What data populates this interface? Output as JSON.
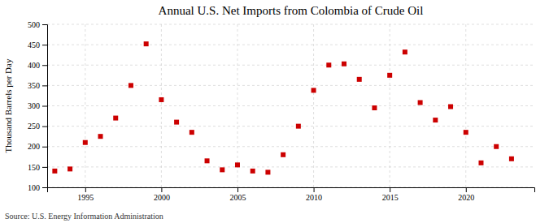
{
  "chart_data": {
    "type": "scatter",
    "title": "Annual U.S. Net Imports from Colombia of Crude Oil",
    "ylabel": "Thousand Barrels per Day",
    "annotation": "Source: U.S. Energy Information Administration",
    "x": [
      1993,
      1994,
      1995,
      1996,
      1997,
      1998,
      1999,
      2000,
      2001,
      2002,
      2003,
      2004,
      2005,
      2006,
      2007,
      2008,
      2009,
      2010,
      2011,
      2012,
      2013,
      2014,
      2015,
      2016,
      2017,
      2018,
      2019,
      2020,
      2021,
      2022,
      2023
    ],
    "values": [
      140,
      145,
      210,
      225,
      270,
      350,
      452,
      315,
      260,
      235,
      165,
      143,
      155,
      140,
      137,
      180,
      250,
      338,
      400,
      403,
      365,
      295,
      375,
      432,
      308,
      265,
      298,
      235,
      160,
      200,
      170
    ],
    "color": "#cc0000",
    "marker": "square",
    "xlim": [
      1992.5,
      2024.5
    ],
    "ylim": [
      100,
      500
    ],
    "xticks": [
      1995,
      2000,
      2005,
      2010,
      2015,
      2020
    ],
    "yticks": [
      100,
      150,
      200,
      250,
      300,
      350,
      400,
      450,
      500
    ],
    "grid": true
  }
}
